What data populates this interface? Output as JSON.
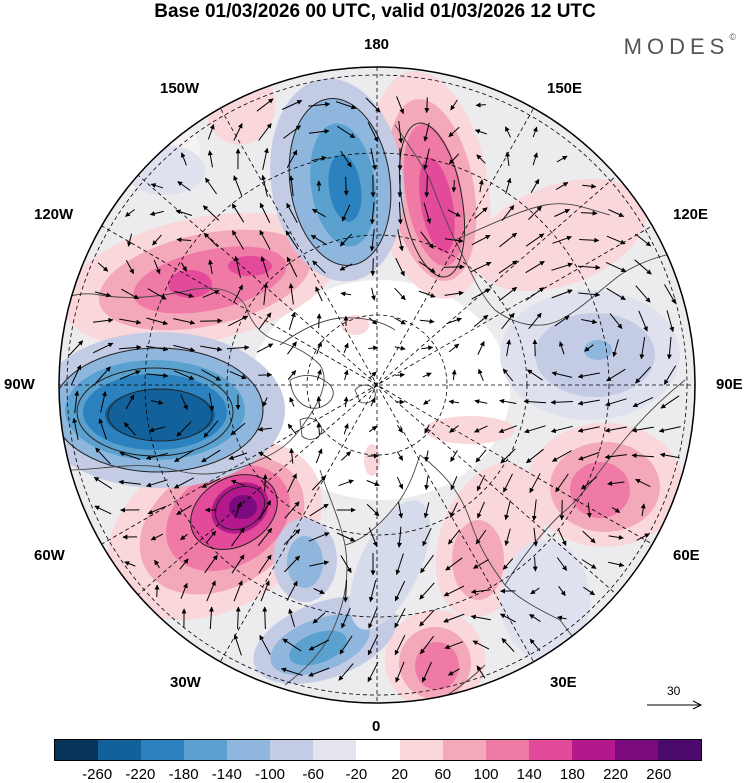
{
  "title": "Base 01/03/2026 00 UTC, valid 01/03/2026 12 UTC",
  "brand": "MODES",
  "brand_mark": "©",
  "lon_labels": {
    "top": "180",
    "top_left": "150W",
    "top_right": "150E",
    "upper_left": "120W",
    "upper_right": "120E",
    "left": "90W",
    "right": "90E",
    "lower_left": "60W",
    "lower_right": "60E",
    "bottom_left": "30W",
    "bottom_right": "30E",
    "bottom": "0"
  },
  "reference_vector": {
    "value": "30",
    "icon": "arrow-right-icon"
  },
  "colorbar": {
    "ticks": [
      "-260",
      "-220",
      "-180",
      "-140",
      "-100",
      "-60",
      "-20",
      "20",
      "60",
      "100",
      "140",
      "180",
      "220",
      "260"
    ],
    "colors": [
      "#08345a",
      "#13619a",
      "#2b82be",
      "#5aa1cf",
      "#8fb6dc",
      "#c4cbe4",
      "#e6e3ef",
      "#ffffff",
      "#fad7da",
      "#f3a9b9",
      "#ef7aa6",
      "#e44a9a",
      "#b3198c",
      "#7a0a7d",
      "#4c0a6e"
    ]
  }
}
